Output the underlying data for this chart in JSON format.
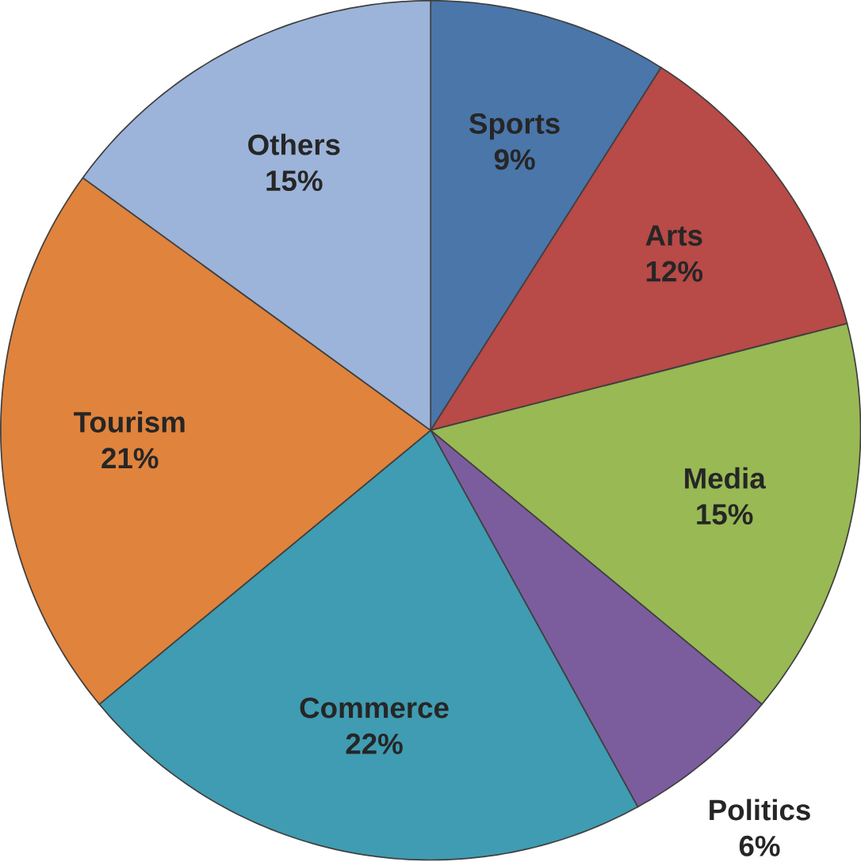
{
  "chart_data": {
    "type": "pie",
    "categories": [
      "Sports",
      "Arts",
      "Media",
      "Politics",
      "Commerce",
      "Tourism",
      "Others"
    ],
    "values": [
      9,
      12,
      15,
      6,
      22,
      21,
      15
    ],
    "colors": [
      "#4a76aa",
      "#b84a47",
      "#98b954",
      "#7b5d9e",
      "#3f9cb2",
      "#e0833c",
      "#9cb4da"
    ],
    "value_labels": [
      "9%",
      "12%",
      "15%",
      "6%",
      "22%",
      "21%",
      "15%"
    ]
  }
}
